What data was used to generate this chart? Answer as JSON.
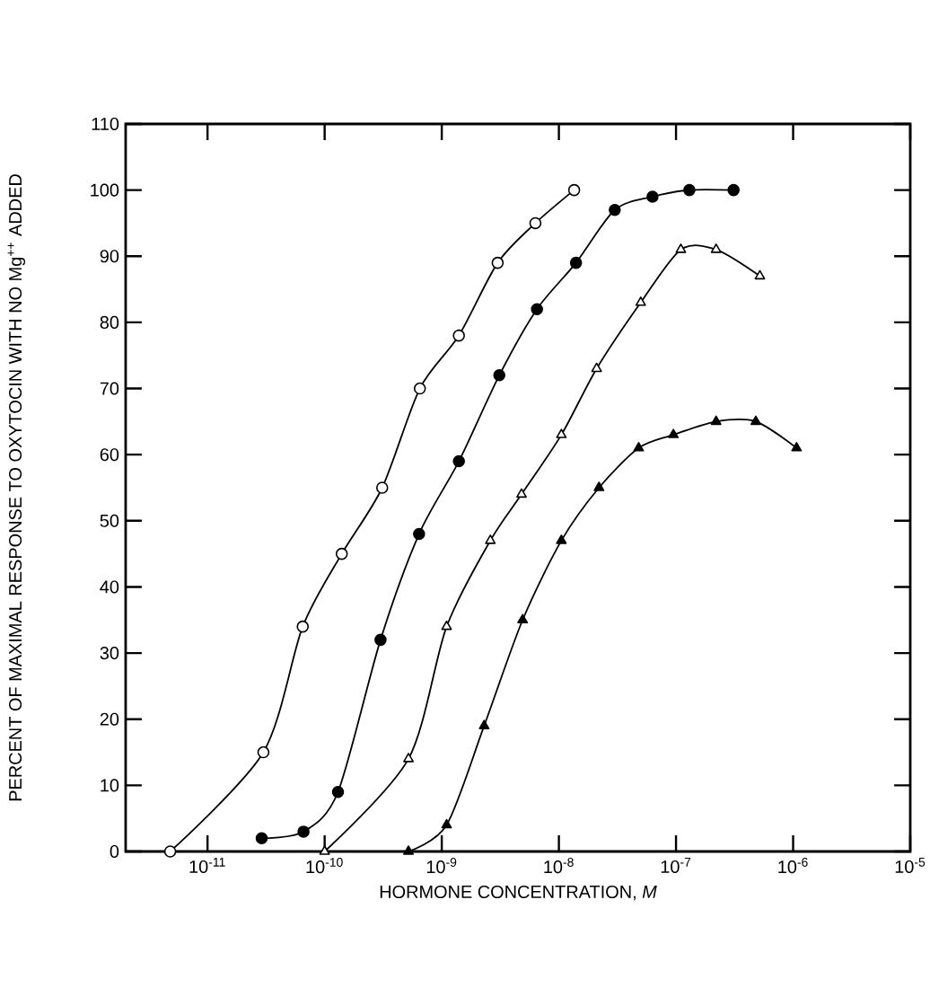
{
  "chart_data": {
    "type": "line",
    "xlabel": "HORMONE CONCENTRATION, *M*",
    "ylabel": "PERCENT OF MAXIMAL RESPONSE TO OXYTOCIN WITH NO Mg$^{++}$ ADDED",
    "log": "x",
    "xlim": [
      2e-12,
      1e-05
    ],
    "ylim": [
      0,
      110
    ],
    "xticks": [
      {
        "value": 1e-11,
        "label": "10$^{-11}$"
      },
      {
        "value": 1e-10,
        "label": "10$^{-10}$"
      },
      {
        "value": 1e-09,
        "label": "10$^{-9}$"
      },
      {
        "value": 1e-08,
        "label": "10$^{-8}$"
      },
      {
        "value": 1e-07,
        "label": "10$^{-7}$"
      },
      {
        "value": 1e-06,
        "label": "10$^{-6}$"
      },
      {
        "value": 1e-05,
        "label": "10$^{-5}$"
      }
    ],
    "yticks": [
      0,
      10,
      20,
      30,
      40,
      50,
      60,
      70,
      80,
      90,
      100,
      110
    ],
    "line_style": "solid",
    "series": [
      {
        "color": "#ffffff",
        "marker": "circle",
        "x": [
          4.8e-12,
          3e-11,
          6.5e-11,
          1.4e-10,
          3.1e-10,
          6.5e-10,
          1.4e-09,
          3e-09,
          6.3e-09,
          1.35e-08
        ],
        "values": [
          0,
          15,
          34,
          45,
          55,
          70,
          78,
          89,
          95,
          100
        ]
      },
      {
        "color": "#000000",
        "marker": "circle",
        "x": [
          2.9e-11,
          6.6e-11,
          1.3e-10,
          3e-10,
          6.4e-10,
          1.4e-09,
          3.1e-09,
          6.5e-09,
          1.4e-08,
          3e-08,
          6.3e-08,
          1.3e-07,
          3.1e-07
        ],
        "values": [
          2,
          3,
          9,
          32,
          48,
          59,
          72,
          82,
          89,
          97,
          99,
          100,
          100
        ]
      },
      {
        "color": "#ffffff",
        "marker": "triangle",
        "x": [
          1e-10,
          5.2e-10,
          1.1e-09,
          2.6e-09,
          4.8e-09,
          1.05e-08,
          2.1e-08,
          5e-08,
          1.1e-07,
          2.2e-07,
          5.2e-07
        ],
        "values": [
          0,
          14,
          34,
          47,
          54,
          63,
          73,
          83,
          91,
          91,
          87
        ]
      },
      {
        "color": "#000000",
        "marker": "triangle",
        "x": [
          5.2e-10,
          1.1e-09,
          2.3e-09,
          4.9e-09,
          1.05e-08,
          2.2e-08,
          4.8e-08,
          9.5e-08,
          2.2e-07,
          4.8e-07,
          1.07e-06
        ],
        "values": [
          0,
          4,
          19,
          35,
          47,
          55,
          61,
          63,
          65,
          65,
          61
        ]
      }
    ]
  }
}
